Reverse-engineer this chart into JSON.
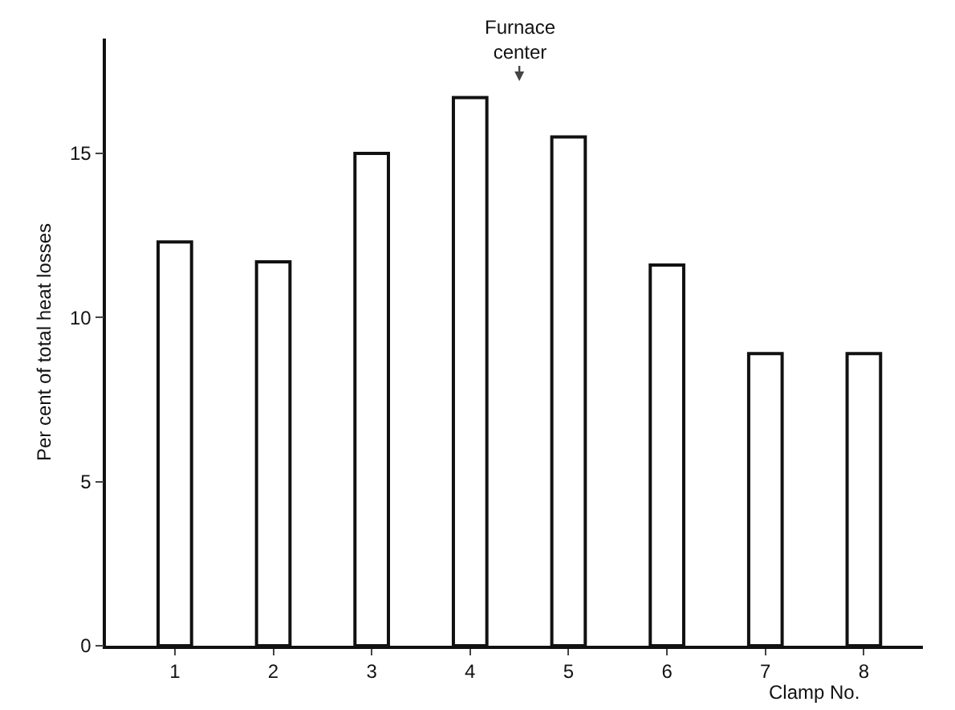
{
  "chart_data": {
    "type": "bar",
    "ylabel": "Per cent of total heat losses",
    "xlabel": "Clamp No.",
    "categories": [
      "1",
      "2",
      "3",
      "4",
      "5",
      "6",
      "7",
      "8"
    ],
    "values": [
      12.3,
      11.7,
      15.0,
      16.7,
      15.5,
      11.6,
      8.9,
      8.9
    ],
    "color": "#ffffff",
    "ylim": [
      0,
      18.5
    ],
    "yticks": [
      0,
      5,
      10,
      15
    ],
    "grid": false,
    "annotations": [
      "Furnace\ncenter"
    ]
  }
}
